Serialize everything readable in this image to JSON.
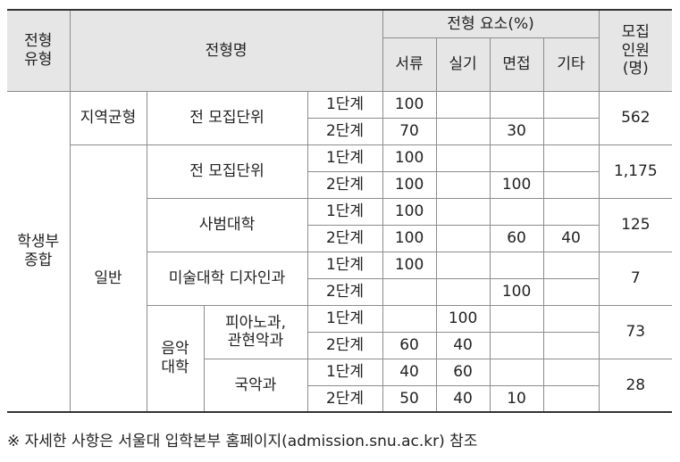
{
  "header": {
    "type_label": "전형\n유형",
    "name_label": "전형명",
    "elements_label": "전형 요소(%)",
    "doc_label": "서류",
    "practical_label": "실기",
    "interview_label": "면접",
    "other_label": "기타",
    "quota_label": "모집\n인원\n(명)"
  },
  "body": {
    "category": "학생부\n종합",
    "regional": {
      "label": "지역균형",
      "unit": "전 모집단위",
      "stage1": {
        "stage": "1단계",
        "doc": "100",
        "practical": "",
        "interview": "",
        "other": ""
      },
      "stage2": {
        "stage": "2단계",
        "doc": "70",
        "practical": "",
        "interview": "30",
        "other": ""
      },
      "quota": "562"
    },
    "general": {
      "label": "일반",
      "all_units": {
        "unit": "전 모집단위",
        "stage1": {
          "stage": "1단계",
          "doc": "100",
          "practical": "",
          "interview": "",
          "other": ""
        },
        "stage2": {
          "stage": "2단계",
          "doc": "100",
          "practical": "",
          "interview": "100",
          "other": ""
        },
        "quota": "1,175"
      },
      "education": {
        "unit": "사범대학",
        "stage1": {
          "stage": "1단계",
          "doc": "100",
          "practical": "",
          "interview": "",
          "other": ""
        },
        "stage2": {
          "stage": "2단계",
          "doc": "100",
          "practical": "",
          "interview": "60",
          "other": "40"
        },
        "quota": "125"
      },
      "art_design": {
        "unit": "미술대학 디자인과",
        "stage1": {
          "stage": "1단계",
          "doc": "100",
          "practical": "",
          "interview": "",
          "other": ""
        },
        "stage2": {
          "stage": "2단계",
          "doc": "",
          "practical": "",
          "interview": "100",
          "other": ""
        },
        "quota": "7"
      },
      "music": {
        "label": "음악\n대학",
        "piano": {
          "unit": "피아노과,\n관현악과",
          "stage1": {
            "stage": "1단계",
            "doc": "",
            "practical": "100",
            "interview": "",
            "other": ""
          },
          "stage2": {
            "stage": "2단계",
            "doc": "60",
            "practical": "40",
            "interview": "",
            "other": ""
          },
          "quota": "73"
        },
        "korean": {
          "unit": "국악과",
          "stage1": {
            "stage": "1단계",
            "doc": "40",
            "practical": "60",
            "interview": "",
            "other": ""
          },
          "stage2": {
            "stage": "2단계",
            "doc": "50",
            "practical": "40",
            "interview": "10",
            "other": ""
          },
          "quota": "28"
        }
      }
    }
  },
  "footnote": "※ 자세한 사항은 서울대 입학본부 홈페이지(admission.snu.ac.kr) 참조"
}
